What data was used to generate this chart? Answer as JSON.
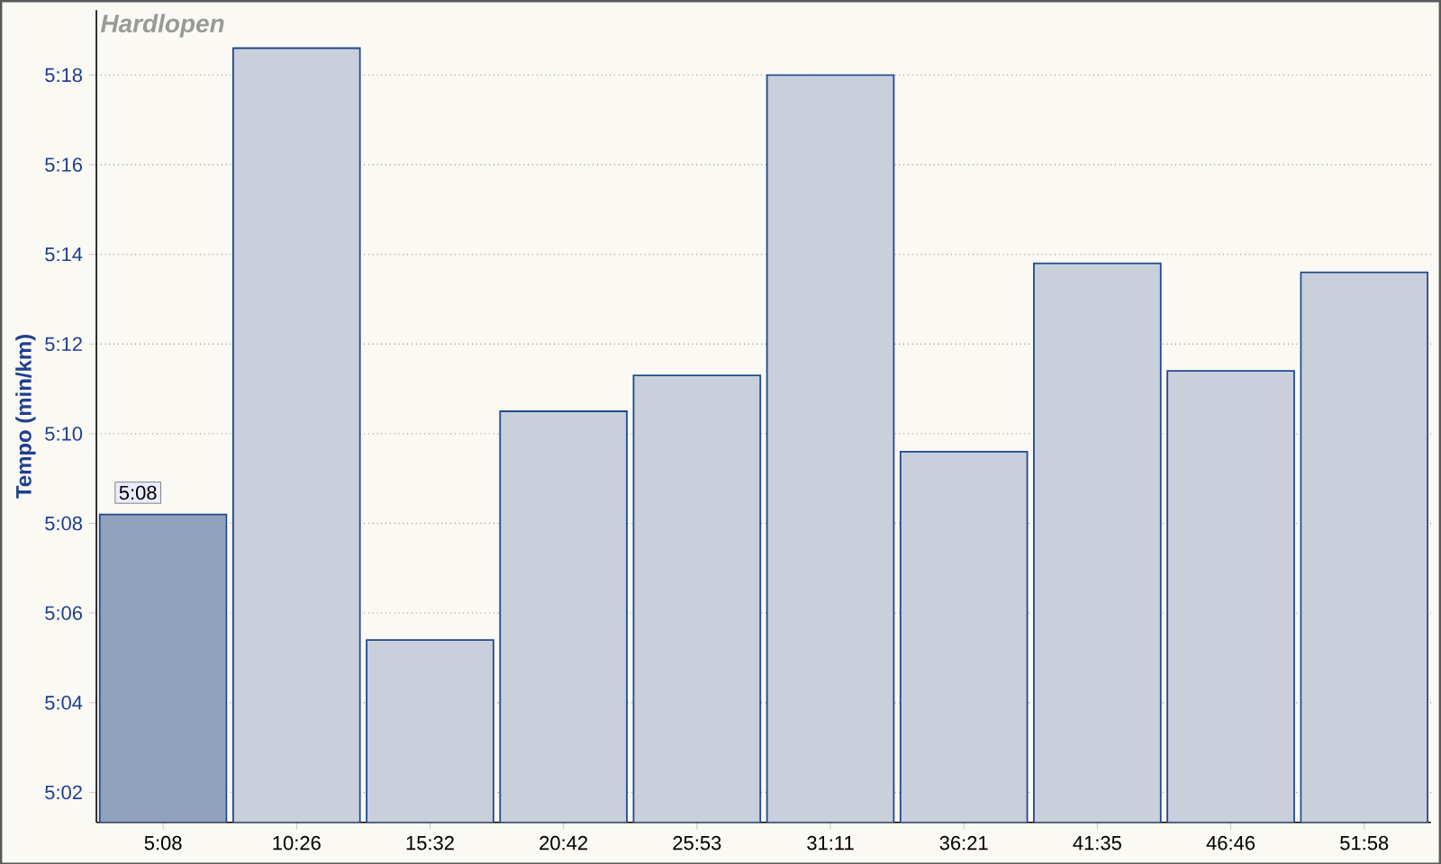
{
  "chart_data": {
    "type": "bar",
    "title": "Hardlopen",
    "ylabel": "Tempo (min/km)",
    "categories": [
      "5:08",
      "10:26",
      "15:32",
      "20:42",
      "25:53",
      "31:11",
      "36:21",
      "41:35",
      "46:46",
      "51:58"
    ],
    "values": [
      308.2,
      318.6,
      305.4,
      310.5,
      311.3,
      318.0,
      309.6,
      313.8,
      311.4,
      313.6
    ],
    "colors": [
      "#8fa1bc",
      "#c9cfdb",
      "#c9cfdb",
      "#c9cfdb",
      "#c9cfdb",
      "#c9cfdb",
      "#c9cfdb",
      "#c9cfdb",
      "#c9cfdb",
      "#c9cfdb"
    ],
    "ylim": [
      301.33,
      319.45
    ],
    "yticks": [
      {
        "value": 302,
        "label": "5:02"
      },
      {
        "value": 304,
        "label": "5:04"
      },
      {
        "value": 306,
        "label": "5:06"
      },
      {
        "value": 308,
        "label": "5:08"
      },
      {
        "value": 310,
        "label": "5:10"
      },
      {
        "value": 312,
        "label": "5:12"
      },
      {
        "value": 314,
        "label": "5:14"
      },
      {
        "value": 316,
        "label": "5:16"
      },
      {
        "value": 318,
        "label": "5:18"
      }
    ],
    "grid": "y",
    "annotations": [
      {
        "text": "5:08",
        "x": "5:08",
        "y": 308.2
      }
    ]
  }
}
